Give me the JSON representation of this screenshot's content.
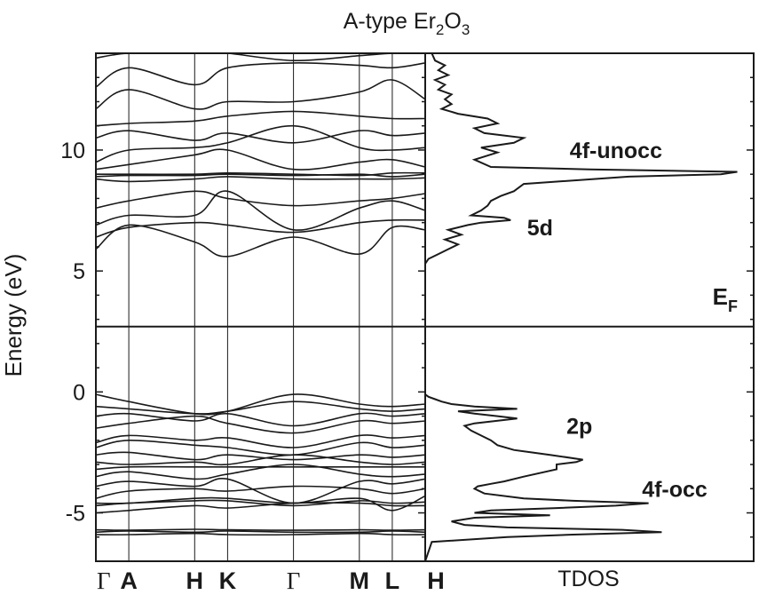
{
  "chart_data": {
    "type": "line",
    "title": "A-type Er",
    "title_sub1": "2",
    "title_mid": "O",
    "title_sub2": "3",
    "ylabel": "Energy (eV)",
    "ylim": [
      -7,
      14
    ],
    "yticks": [
      -5,
      0,
      5,
      10
    ],
    "fermi_level_eV": 2.7,
    "fermi_label": "E",
    "fermi_label_sub": "F",
    "band_structure": {
      "kpath": [
        {
          "label": "Γ",
          "pos": 0.0,
          "greek": true
        },
        {
          "label": "A",
          "pos": 0.1,
          "greek": false
        },
        {
          "label": "H",
          "pos": 0.3,
          "greek": false
        },
        {
          "label": "K",
          "pos": 0.4,
          "greek": false
        },
        {
          "label": "Γ",
          "pos": 0.6,
          "greek": true
        },
        {
          "label": "M",
          "pos": 0.8,
          "greek": false
        },
        {
          "label": "L",
          "pos": 0.9,
          "greek": false
        },
        {
          "label": "H",
          "pos": 1.0,
          "greek": false
        }
      ],
      "bands": [
        [
          -5.9,
          -5.9,
          -5.85,
          -5.9,
          -5.9,
          -5.85,
          -5.9,
          -5.9
        ],
        [
          -5.8,
          -5.75,
          -5.8,
          -5.75,
          -5.8,
          -5.8,
          -5.75,
          -5.8
        ],
        [
          -5.7,
          -5.72,
          -5.68,
          -5.7,
          -5.72,
          -5.7,
          -5.72,
          -5.7
        ],
        [
          -5.0,
          -4.9,
          -4.7,
          -4.8,
          -4.6,
          -4.6,
          -4.7,
          -4.7
        ],
        [
          -4.7,
          -4.6,
          -4.5,
          -4.5,
          -4.7,
          -4.5,
          -4.6,
          -4.55
        ],
        [
          -4.6,
          -4.6,
          -4.4,
          -4.4,
          -4.6,
          -4.4,
          -4.9,
          -4.3
        ],
        [
          -4.4,
          -4.1,
          -4.0,
          -4.1,
          -3.9,
          -4.0,
          -4.2,
          -4.0
        ],
        [
          -3.9,
          -3.7,
          -3.9,
          -3.6,
          -4.6,
          -3.7,
          -3.8,
          -3.6
        ],
        [
          -3.5,
          -3.3,
          -3.6,
          -3.4,
          -3.0,
          -3.4,
          -3.5,
          -3.4
        ],
        [
          -3.2,
          -3.1,
          -3.1,
          -3.1,
          -3.1,
          -3.1,
          -3.1,
          -3.1
        ],
        [
          -2.9,
          -3.0,
          -2.9,
          -3.0,
          -2.6,
          -2.9,
          -3.0,
          -2.9
        ],
        [
          -2.6,
          -2.5,
          -2.8,
          -2.6,
          -2.8,
          -2.6,
          -2.7,
          -2.6
        ],
        [
          -2.3,
          -2.0,
          -2.2,
          -2.3,
          -2.6,
          -2.1,
          -2.3,
          -2.2
        ],
        [
          -2.1,
          -1.8,
          -2.0,
          -1.9,
          -2.3,
          -1.8,
          -1.9,
          -1.8
        ],
        [
          -1.5,
          -1.3,
          -1.0,
          -1.3,
          -1.7,
          -1.2,
          -1.3,
          -1.2
        ],
        [
          -1.0,
          -0.9,
          -1.2,
          -0.9,
          -1.4,
          -0.9,
          -1.0,
          -0.9
        ],
        [
          -0.6,
          -0.7,
          -0.9,
          -0.8,
          -0.4,
          -0.7,
          -0.8,
          -0.7
        ],
        [
          -0.1,
          -0.4,
          -0.9,
          -0.8,
          -0.1,
          -0.5,
          -0.6,
          -0.5
        ],
        [
          5.9,
          6.9,
          6.2,
          5.6,
          6.4,
          5.7,
          6.8,
          6.7
        ],
        [
          6.4,
          6.8,
          7.0,
          6.9,
          6.6,
          7.0,
          7.1,
          7.1
        ],
        [
          6.9,
          7.3,
          7.3,
          8.3,
          6.7,
          7.6,
          7.9,
          7.5
        ],
        [
          7.6,
          7.9,
          8.3,
          8.0,
          7.7,
          7.9,
          8.0,
          8.2
        ],
        [
          8.8,
          8.7,
          8.8,
          8.9,
          8.8,
          8.8,
          8.8,
          8.85
        ],
        [
          8.9,
          8.95,
          8.95,
          9.0,
          8.95,
          9.0,
          8.9,
          9.0
        ],
        [
          9.0,
          9.0,
          9.0,
          9.05,
          9.0,
          8.95,
          9.05,
          9.05
        ],
        [
          9.2,
          9.4,
          9.8,
          10.0,
          9.2,
          9.5,
          9.6,
          9.3
        ],
        [
          9.5,
          10.0,
          10.1,
          10.3,
          11.0,
          10.1,
          10.0,
          10.1
        ],
        [
          10.5,
          10.8,
          10.4,
          10.7,
          10.3,
          10.8,
          10.6,
          10.7
        ],
        [
          11.0,
          11.1,
          11.2,
          11.4,
          11.6,
          11.4,
          11.3,
          11.3
        ],
        [
          11.7,
          12.5,
          11.7,
          12.0,
          12.0,
          12.4,
          12.9,
          12.1
        ],
        [
          12.6,
          13.4,
          12.7,
          13.4,
          13.6,
          13.5,
          13.4,
          13.6
        ],
        [
          13.8,
          14.0,
          14.0,
          14.0,
          13.7,
          13.9,
          14.0,
          14.0
        ]
      ]
    },
    "tdos": {
      "xlabel": "TDOS",
      "energy": [
        -7.0,
        -6.2,
        -6.0,
        -5.9,
        -5.8,
        -5.7,
        -5.6,
        -5.5,
        -5.35,
        -5.2,
        -5.1,
        -5.0,
        -4.9,
        -4.8,
        -4.7,
        -4.6,
        -4.5,
        -4.4,
        -4.2,
        -4.0,
        -3.9,
        -3.8,
        -3.7,
        -3.5,
        -3.2,
        -3.0,
        -2.9,
        -2.8,
        -2.6,
        -2.4,
        -2.2,
        -2.0,
        -1.8,
        -1.6,
        -1.4,
        -1.3,
        -1.1,
        -1.0,
        -0.9,
        -0.8,
        -0.7,
        -0.6,
        -0.5,
        -0.4,
        -0.3,
        -0.2,
        -0.1,
        0.0,
        0.1,
        0.2,
        2.7,
        5.3,
        5.5,
        5.7,
        5.9,
        6.1,
        6.3,
        6.5,
        6.7,
        6.9,
        7.0,
        7.1,
        7.2,
        7.3,
        7.5,
        7.7,
        7.9,
        8.1,
        8.3,
        8.6,
        8.9,
        9.0,
        9.1,
        9.2,
        9.3,
        9.6,
        9.9,
        10.1,
        10.3,
        10.5,
        10.7,
        10.9,
        11.1,
        11.3,
        11.5,
        11.7,
        11.9,
        12.1,
        12.3,
        12.5,
        12.7,
        12.9,
        13.1,
        13.3,
        13.5,
        13.7,
        14.0
      ],
      "dos": [
        0.0,
        0.02,
        0.25,
        0.45,
        0.72,
        0.6,
        0.25,
        0.12,
        0.08,
        0.15,
        0.38,
        0.15,
        0.2,
        0.4,
        0.58,
        0.68,
        0.45,
        0.3,
        0.18,
        0.15,
        0.16,
        0.2,
        0.24,
        0.3,
        0.4,
        0.4,
        0.46,
        0.48,
        0.38,
        0.27,
        0.22,
        0.2,
        0.17,
        0.14,
        0.12,
        0.15,
        0.28,
        0.22,
        0.15,
        0.1,
        0.28,
        0.15,
        0.08,
        0.05,
        0.03,
        0.01,
        0.0,
        0.0,
        0.0,
        0.0,
        0.0,
        0.0,
        0.01,
        0.04,
        0.07,
        0.1,
        0.06,
        0.11,
        0.07,
        0.13,
        0.17,
        0.26,
        0.24,
        0.14,
        0.17,
        0.19,
        0.2,
        0.23,
        0.27,
        0.3,
        0.62,
        0.9,
        0.95,
        0.5,
        0.2,
        0.15,
        0.22,
        0.17,
        0.27,
        0.3,
        0.18,
        0.15,
        0.22,
        0.19,
        0.1,
        0.05,
        0.08,
        0.06,
        0.08,
        0.04,
        0.06,
        0.03,
        0.07,
        0.04,
        0.06,
        0.03,
        0.02
      ],
      "xlim": [
        0,
        1
      ]
    },
    "annotations": [
      {
        "text": "4f-unocc",
        "energy": 10.0,
        "dos": 0.44
      },
      {
        "text": "5d",
        "energy": 6.8,
        "dos": 0.31
      },
      {
        "text": "2p",
        "energy": -1.4,
        "dos": 0.43
      },
      {
        "text": "4f-occ",
        "energy": -4.0,
        "dos": 0.66
      }
    ],
    "grid": false,
    "legend": "none"
  }
}
